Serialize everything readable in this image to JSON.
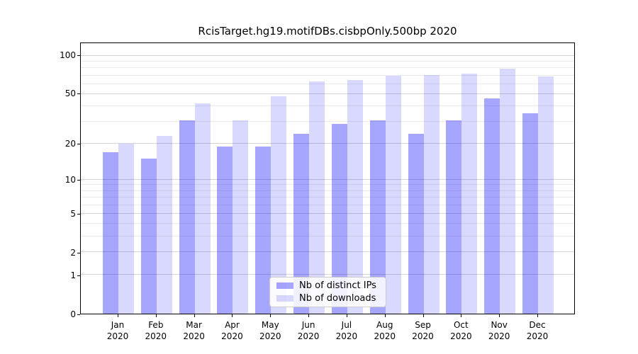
{
  "chart_data": {
    "type": "bar",
    "title": "RcisTarget.hg19.motifDBs.cisbpOnly.500bp 2020",
    "categories": [
      [
        "Jan",
        "2020"
      ],
      [
        "Feb",
        "2020"
      ],
      [
        "Mar",
        "2020"
      ],
      [
        "Apr",
        "2020"
      ],
      [
        "May",
        "2020"
      ],
      [
        "Jun",
        "2020"
      ],
      [
        "Jul",
        "2020"
      ],
      [
        "Aug",
        "2020"
      ],
      [
        "Sep",
        "2020"
      ],
      [
        "Oct",
        "2020"
      ],
      [
        "Nov",
        "2020"
      ],
      [
        "Dec",
        "2020"
      ]
    ],
    "series": [
      {
        "name": "Nb of distinct IPs",
        "color": "#0000FF59",
        "values": [
          17,
          15,
          31,
          19,
          19,
          24,
          29,
          31,
          24,
          31,
          46,
          35
        ]
      },
      {
        "name": "Nb of downloads",
        "color": "#0000FF26",
        "values": [
          20,
          23,
          42,
          31,
          48,
          63,
          65,
          70,
          71,
          73,
          79,
          69
        ]
      }
    ],
    "xlabel": "",
    "ylabel": "",
    "yscale": "log1p",
    "ylim": [
      0,
      126
    ],
    "yticks": [
      0,
      1,
      2,
      5,
      10,
      20,
      50,
      100
    ],
    "minor_gridlines": [
      3,
      4,
      6,
      7,
      8,
      9,
      30,
      40,
      60,
      70,
      80,
      90
    ],
    "grid": "on",
    "legend_position": "lower center",
    "colors": {
      "major_grid": "#d4d4d4",
      "minor_grid": "#ebebeb",
      "axis": "#000000",
      "background": "#ffffff"
    }
  }
}
